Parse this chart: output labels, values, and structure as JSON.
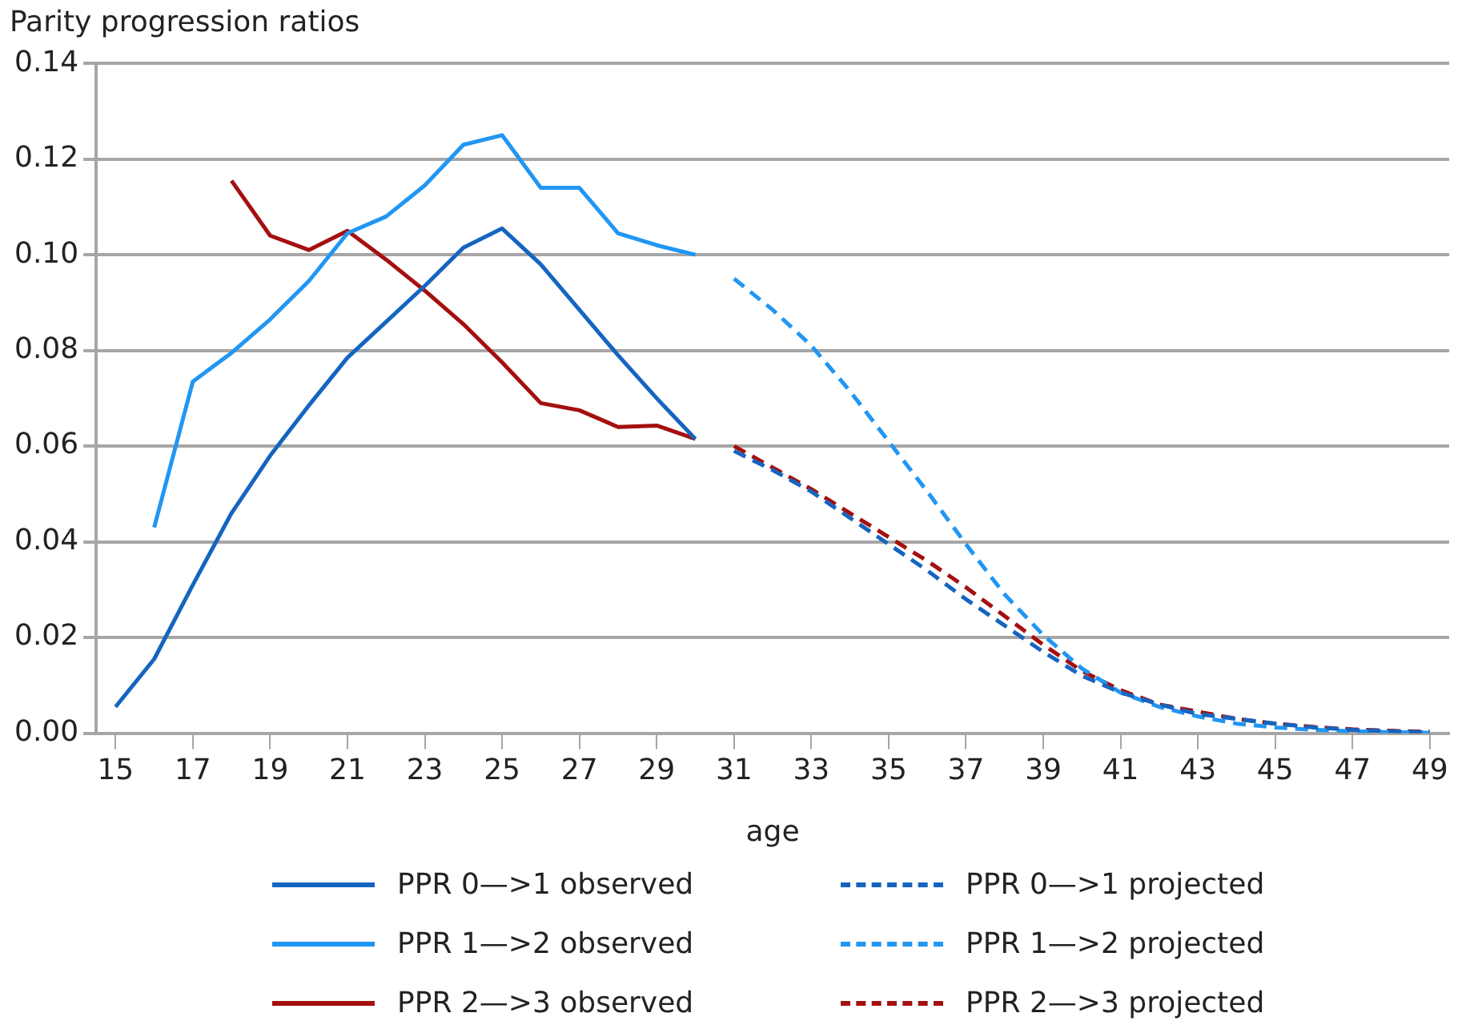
{
  "chart_data": {
    "type": "line",
    "title": "Parity progression ratios",
    "xlabel": "age",
    "categories": [
      "15",
      null,
      "17",
      null,
      "19",
      null,
      "21",
      null,
      "23",
      null,
      "25",
      null,
      "27",
      null,
      "29",
      null,
      "31",
      null,
      "33",
      null,
      "35",
      null,
      "37",
      null,
      "39",
      null,
      "41",
      null,
      "43",
      null,
      "45",
      null,
      "47",
      null,
      "49"
    ],
    "ylim": [
      0,
      0.14
    ],
    "yticks": [
      {
        "value": 0,
        "label": "0.00"
      },
      {
        "value": 0.02,
        "label": "0.02"
      },
      {
        "value": 0.04,
        "label": "0.04"
      },
      {
        "value": 0.06,
        "label": "0.06"
      },
      {
        "value": 0.08,
        "label": "0.08"
      },
      {
        "value": 0.1,
        "label": "0.10"
      },
      {
        "value": 0.12,
        "label": "0.12"
      },
      {
        "value": 0.14,
        "label": "0.14"
      }
    ],
    "grid": "y",
    "legend": "bottom",
    "marker": "none",
    "series": [
      {
        "name": "PPR 0—>1 observed",
        "color": "#1565c0",
        "line_style": "solid",
        "values": [
          0.0055,
          0.0155,
          0.031,
          0.046,
          0.058,
          0.0685,
          0.0785,
          0.086,
          0.0935,
          0.1015,
          0.1055,
          0.098,
          0.0885,
          0.079,
          0.07,
          0.0615,
          null,
          null,
          null,
          null,
          null,
          null,
          null,
          null,
          null,
          null,
          null,
          null,
          null,
          null,
          null,
          null,
          null,
          null,
          null
        ]
      },
      {
        "name": "PPR 1—>2 observed",
        "color": "#2196f3",
        "line_style": "solid",
        "values": [
          null,
          0.043,
          0.0735,
          0.0795,
          0.0865,
          0.0945,
          0.1045,
          0.108,
          0.1145,
          0.123,
          0.125,
          0.114,
          0.114,
          0.1045,
          0.102,
          0.1,
          null,
          null,
          null,
          null,
          null,
          null,
          null,
          null,
          null,
          null,
          null,
          null,
          null,
          null,
          null,
          null,
          null,
          null,
          null
        ]
      },
      {
        "name": "PPR 2—>3 observed",
        "color": "#a50f0f",
        "line_style": "solid",
        "values": [
          null,
          null,
          null,
          0.1155,
          0.104,
          0.101,
          0.105,
          0.099,
          0.0925,
          0.0855,
          0.0775,
          0.069,
          0.0675,
          0.064,
          0.0643,
          0.0615,
          null,
          null,
          null,
          null,
          null,
          null,
          null,
          null,
          null,
          null,
          null,
          null,
          null,
          null,
          null,
          null,
          null,
          null,
          null
        ]
      },
      {
        "name": "PPR 0—>1 projected",
        "color": "#1565c0",
        "line_style": "dashed",
        "values": [
          null,
          null,
          null,
          null,
          null,
          null,
          null,
          null,
          null,
          null,
          null,
          null,
          null,
          null,
          null,
          null,
          0.059,
          0.055,
          0.0505,
          0.045,
          0.0395,
          0.034,
          0.028,
          0.0225,
          0.017,
          0.012,
          0.0085,
          0.006,
          0.004,
          0.003,
          0.002,
          0.0012,
          0.0007,
          0.0004,
          0.0002
        ]
      },
      {
        "name": "PPR 1—>2 projected",
        "color": "#2196f3",
        "line_style": "dashed",
        "values": [
          null,
          null,
          null,
          null,
          null,
          null,
          null,
          null,
          null,
          null,
          null,
          null,
          null,
          null,
          null,
          null,
          0.095,
          0.0885,
          0.081,
          0.0715,
          0.061,
          0.0505,
          0.0395,
          0.029,
          0.0205,
          0.0135,
          0.0085,
          0.0055,
          0.0035,
          0.002,
          0.0012,
          0.0007,
          0.0004,
          0.0002,
          0.0001
        ]
      },
      {
        "name": "PPR 2—>3 projected",
        "color": "#a50f0f",
        "line_style": "dashed",
        "values": [
          null,
          null,
          null,
          null,
          null,
          null,
          null,
          null,
          null,
          null,
          null,
          null,
          null,
          null,
          null,
          null,
          0.06,
          0.0555,
          0.051,
          0.046,
          0.041,
          0.036,
          0.0305,
          0.0245,
          0.0185,
          0.013,
          0.009,
          0.006,
          0.0045,
          0.003,
          0.002,
          0.0013,
          0.0008,
          0.0005,
          0.0003
        ]
      }
    ]
  }
}
